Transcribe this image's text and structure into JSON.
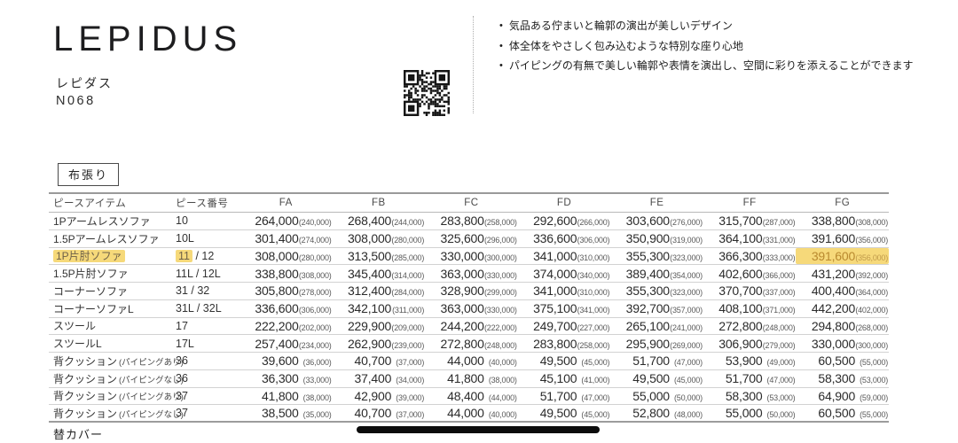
{
  "header": {
    "title": "LEPIDUS",
    "kana": "レピダス",
    "model": "N068",
    "features": [
      "気品ある佇まいと輪郭の演出が美しいデザイン",
      "体全体をやさしく包み込むような特別な座り心地",
      "パイピングの有無で美しい輪郭や表情を演出し、空間に彩りを添えることができます"
    ]
  },
  "section": {
    "label": "布張り"
  },
  "price_table": {
    "columns": [
      "ピースアイテム",
      "ピース番号",
      "FA",
      "FB",
      "FC",
      "FD",
      "FE",
      "FF",
      "FG"
    ],
    "rows": [
      {
        "item": "1Pアームレスソファ",
        "note": "",
        "num_pre": "10",
        "num_post": "",
        "hl": false,
        "hl_price": -1,
        "prices": [
          [
            "264,000",
            "(240,000)"
          ],
          [
            "268,400",
            "(244,000)"
          ],
          [
            "283,800",
            "(258,000)"
          ],
          [
            "292,600",
            "(266,000)"
          ],
          [
            "303,600",
            "(276,000)"
          ],
          [
            "315,700",
            "(287,000)"
          ],
          [
            "338,800",
            "(308,000)"
          ]
        ]
      },
      {
        "item": "1.5Pアームレスソファ",
        "note": "",
        "num_pre": "10L",
        "num_post": "",
        "hl": false,
        "hl_price": -1,
        "prices": [
          [
            "301,400",
            "(274,000)"
          ],
          [
            "308,000",
            "(280,000)"
          ],
          [
            "325,600",
            "(296,000)"
          ],
          [
            "336,600",
            "(306,000)"
          ],
          [
            "350,900",
            "(319,000)"
          ],
          [
            "364,100",
            "(331,000)"
          ],
          [
            "391,600",
            "(356,000)"
          ]
        ]
      },
      {
        "item": "1P片肘ソファ",
        "note": "",
        "num_pre": "11",
        "num_post": " / 12",
        "hl": true,
        "hl_price": 6,
        "prices": [
          [
            "308,000",
            "(280,000)"
          ],
          [
            "313,500",
            "(285,000)"
          ],
          [
            "330,000",
            "(300,000)"
          ],
          [
            "341,000",
            "(310,000)"
          ],
          [
            "355,300",
            "(323,000)"
          ],
          [
            "366,300",
            "(333,000)"
          ],
          [
            "391,600",
            "(356,000)"
          ]
        ]
      },
      {
        "item": "1.5P片肘ソファ",
        "note": "",
        "num_pre": "11L / 12L",
        "num_post": "",
        "hl": false,
        "hl_price": -1,
        "prices": [
          [
            "338,800",
            "(308,000)"
          ],
          [
            "345,400",
            "(314,000)"
          ],
          [
            "363,000",
            "(330,000)"
          ],
          [
            "374,000",
            "(340,000)"
          ],
          [
            "389,400",
            "(354,000)"
          ],
          [
            "402,600",
            "(366,000)"
          ],
          [
            "431,200",
            "(392,000)"
          ]
        ]
      },
      {
        "item": "コーナーソファ",
        "note": "",
        "num_pre": "31 / 32",
        "num_post": "",
        "hl": false,
        "hl_price": -1,
        "prices": [
          [
            "305,800",
            "(278,000)"
          ],
          [
            "312,400",
            "(284,000)"
          ],
          [
            "328,900",
            "(299,000)"
          ],
          [
            "341,000",
            "(310,000)"
          ],
          [
            "355,300",
            "(323,000)"
          ],
          [
            "370,700",
            "(337,000)"
          ],
          [
            "400,400",
            "(364,000)"
          ]
        ]
      },
      {
        "item": "コーナーソファL",
        "note": "",
        "num_pre": "31L / 32L",
        "num_post": "",
        "hl": false,
        "hl_price": -1,
        "prices": [
          [
            "336,600",
            "(306,000)"
          ],
          [
            "342,100",
            "(311,000)"
          ],
          [
            "363,000",
            "(330,000)"
          ],
          [
            "375,100",
            "(341,000)"
          ],
          [
            "392,700",
            "(357,000)"
          ],
          [
            "408,100",
            "(371,000)"
          ],
          [
            "442,200",
            "(402,000)"
          ]
        ]
      },
      {
        "item": "スツール",
        "note": "",
        "num_pre": "17",
        "num_post": "",
        "hl": false,
        "hl_price": -1,
        "prices": [
          [
            "222,200",
            "(202,000)"
          ],
          [
            "229,900",
            "(209,000)"
          ],
          [
            "244,200",
            "(222,000)"
          ],
          [
            "249,700",
            "(227,000)"
          ],
          [
            "265,100",
            "(241,000)"
          ],
          [
            "272,800",
            "(248,000)"
          ],
          [
            "294,800",
            "(268,000)"
          ]
        ]
      },
      {
        "item": "スツールL",
        "note": "",
        "num_pre": "17L",
        "num_post": "",
        "hl": false,
        "hl_price": -1,
        "prices": [
          [
            "257,400",
            "(234,000)"
          ],
          [
            "262,900",
            "(239,000)"
          ],
          [
            "272,800",
            "(248,000)"
          ],
          [
            "283,800",
            "(258,000)"
          ],
          [
            "295,900",
            "(269,000)"
          ],
          [
            "306,900",
            "(279,000)"
          ],
          [
            "330,000",
            "(300,000)"
          ]
        ]
      },
      {
        "item": "背クッション",
        "note": "(パイピングあり)",
        "num_pre": "36",
        "num_post": "",
        "hl": false,
        "hl_price": -1,
        "prices": [
          [
            "39,600",
            "(36,000)"
          ],
          [
            "40,700",
            "(37,000)"
          ],
          [
            "44,000",
            "(40,000)"
          ],
          [
            "49,500",
            "(45,000)"
          ],
          [
            "51,700",
            "(47,000)"
          ],
          [
            "53,900",
            "(49,000)"
          ],
          [
            "60,500",
            "(55,000)"
          ]
        ]
      },
      {
        "item": "背クッション",
        "note": "(パイピングなし)",
        "num_pre": "36",
        "num_post": "",
        "hl": false,
        "hl_price": -1,
        "prices": [
          [
            "36,300",
            "(33,000)"
          ],
          [
            "37,400",
            "(34,000)"
          ],
          [
            "41,800",
            "(38,000)"
          ],
          [
            "45,100",
            "(41,000)"
          ],
          [
            "49,500",
            "(45,000)"
          ],
          [
            "51,700",
            "(47,000)"
          ],
          [
            "58,300",
            "(53,000)"
          ]
        ]
      },
      {
        "item": "背クッション",
        "note": "(パイピングあり)",
        "num_pre": "37",
        "num_post": "",
        "hl": false,
        "hl_price": -1,
        "prices": [
          [
            "41,800",
            "(38,000)"
          ],
          [
            "42,900",
            "(39,000)"
          ],
          [
            "48,400",
            "(44,000)"
          ],
          [
            "51,700",
            "(47,000)"
          ],
          [
            "55,000",
            "(50,000)"
          ],
          [
            "58,300",
            "(53,000)"
          ],
          [
            "64,900",
            "(59,000)"
          ]
        ]
      },
      {
        "item": "背クッション",
        "note": "(パイピングなし)",
        "num_pre": "37",
        "num_post": "",
        "hl": false,
        "hl_price": -1,
        "prices": [
          [
            "38,500",
            "(35,000)"
          ],
          [
            "40,700",
            "(37,000)"
          ],
          [
            "44,000",
            "(40,000)"
          ],
          [
            "49,500",
            "(45,000)"
          ],
          [
            "52,800",
            "(48,000)"
          ],
          [
            "55,000",
            "(50,000)"
          ],
          [
            "60,500",
            "(55,000)"
          ]
        ]
      }
    ]
  },
  "footer": {
    "next_section": "替カバー"
  },
  "colors": {
    "highlight_bg": "#f6d97a",
    "highlight_text": "#b9892f"
  }
}
